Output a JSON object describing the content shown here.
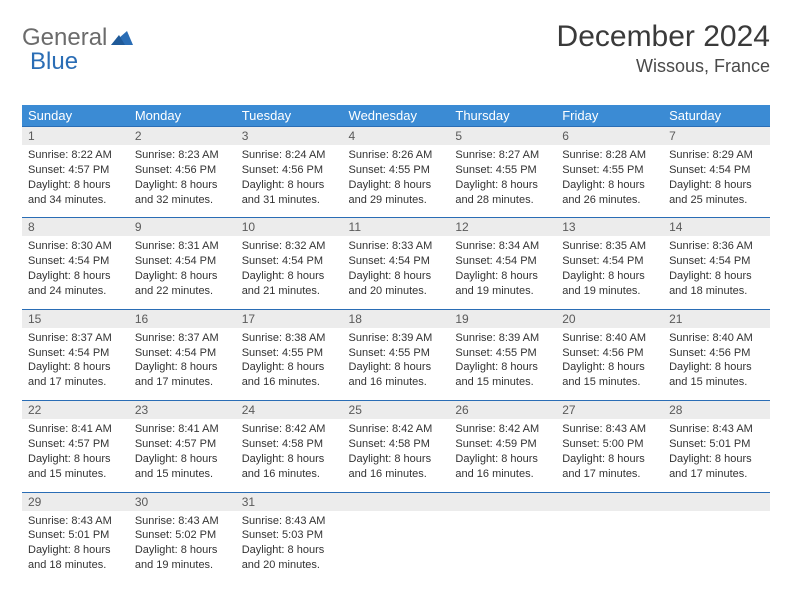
{
  "brand": {
    "part1": "General",
    "part2": "Blue",
    "iconColor": "#2a6db5"
  },
  "title": "December 2024",
  "location": "Wissous, France",
  "colors": {
    "headerBg": "#3b8bd4",
    "headerText": "#ffffff",
    "cellBorder": "#2a6db5",
    "daynumBg": "#ececec",
    "daynumText": "#5a5a5a",
    "bodyText": "#333333",
    "background": "#ffffff"
  },
  "typography": {
    "titleSize": 30,
    "locationSize": 18,
    "dayheadSize": 13,
    "daynumSize": 12,
    "bodySize": 11
  },
  "weekdays": [
    "Sunday",
    "Monday",
    "Tuesday",
    "Wednesday",
    "Thursday",
    "Friday",
    "Saturday"
  ],
  "days": [
    {
      "n": "1",
      "sunrise": "Sunrise: 8:22 AM",
      "sunset": "Sunset: 4:57 PM",
      "day1": "Daylight: 8 hours",
      "day2": "and 34 minutes."
    },
    {
      "n": "2",
      "sunrise": "Sunrise: 8:23 AM",
      "sunset": "Sunset: 4:56 PM",
      "day1": "Daylight: 8 hours",
      "day2": "and 32 minutes."
    },
    {
      "n": "3",
      "sunrise": "Sunrise: 8:24 AM",
      "sunset": "Sunset: 4:56 PM",
      "day1": "Daylight: 8 hours",
      "day2": "and 31 minutes."
    },
    {
      "n": "4",
      "sunrise": "Sunrise: 8:26 AM",
      "sunset": "Sunset: 4:55 PM",
      "day1": "Daylight: 8 hours",
      "day2": "and 29 minutes."
    },
    {
      "n": "5",
      "sunrise": "Sunrise: 8:27 AM",
      "sunset": "Sunset: 4:55 PM",
      "day1": "Daylight: 8 hours",
      "day2": "and 28 minutes."
    },
    {
      "n": "6",
      "sunrise": "Sunrise: 8:28 AM",
      "sunset": "Sunset: 4:55 PM",
      "day1": "Daylight: 8 hours",
      "day2": "and 26 minutes."
    },
    {
      "n": "7",
      "sunrise": "Sunrise: 8:29 AM",
      "sunset": "Sunset: 4:54 PM",
      "day1": "Daylight: 8 hours",
      "day2": "and 25 minutes."
    },
    {
      "n": "8",
      "sunrise": "Sunrise: 8:30 AM",
      "sunset": "Sunset: 4:54 PM",
      "day1": "Daylight: 8 hours",
      "day2": "and 24 minutes."
    },
    {
      "n": "9",
      "sunrise": "Sunrise: 8:31 AM",
      "sunset": "Sunset: 4:54 PM",
      "day1": "Daylight: 8 hours",
      "day2": "and 22 minutes."
    },
    {
      "n": "10",
      "sunrise": "Sunrise: 8:32 AM",
      "sunset": "Sunset: 4:54 PM",
      "day1": "Daylight: 8 hours",
      "day2": "and 21 minutes."
    },
    {
      "n": "11",
      "sunrise": "Sunrise: 8:33 AM",
      "sunset": "Sunset: 4:54 PM",
      "day1": "Daylight: 8 hours",
      "day2": "and 20 minutes."
    },
    {
      "n": "12",
      "sunrise": "Sunrise: 8:34 AM",
      "sunset": "Sunset: 4:54 PM",
      "day1": "Daylight: 8 hours",
      "day2": "and 19 minutes."
    },
    {
      "n": "13",
      "sunrise": "Sunrise: 8:35 AM",
      "sunset": "Sunset: 4:54 PM",
      "day1": "Daylight: 8 hours",
      "day2": "and 19 minutes."
    },
    {
      "n": "14",
      "sunrise": "Sunrise: 8:36 AM",
      "sunset": "Sunset: 4:54 PM",
      "day1": "Daylight: 8 hours",
      "day2": "and 18 minutes."
    },
    {
      "n": "15",
      "sunrise": "Sunrise: 8:37 AM",
      "sunset": "Sunset: 4:54 PM",
      "day1": "Daylight: 8 hours",
      "day2": "and 17 minutes."
    },
    {
      "n": "16",
      "sunrise": "Sunrise: 8:37 AM",
      "sunset": "Sunset: 4:54 PM",
      "day1": "Daylight: 8 hours",
      "day2": "and 17 minutes."
    },
    {
      "n": "17",
      "sunrise": "Sunrise: 8:38 AM",
      "sunset": "Sunset: 4:55 PM",
      "day1": "Daylight: 8 hours",
      "day2": "and 16 minutes."
    },
    {
      "n": "18",
      "sunrise": "Sunrise: 8:39 AM",
      "sunset": "Sunset: 4:55 PM",
      "day1": "Daylight: 8 hours",
      "day2": "and 16 minutes."
    },
    {
      "n": "19",
      "sunrise": "Sunrise: 8:39 AM",
      "sunset": "Sunset: 4:55 PM",
      "day1": "Daylight: 8 hours",
      "day2": "and 15 minutes."
    },
    {
      "n": "20",
      "sunrise": "Sunrise: 8:40 AM",
      "sunset": "Sunset: 4:56 PM",
      "day1": "Daylight: 8 hours",
      "day2": "and 15 minutes."
    },
    {
      "n": "21",
      "sunrise": "Sunrise: 8:40 AM",
      "sunset": "Sunset: 4:56 PM",
      "day1": "Daylight: 8 hours",
      "day2": "and 15 minutes."
    },
    {
      "n": "22",
      "sunrise": "Sunrise: 8:41 AM",
      "sunset": "Sunset: 4:57 PM",
      "day1": "Daylight: 8 hours",
      "day2": "and 15 minutes."
    },
    {
      "n": "23",
      "sunrise": "Sunrise: 8:41 AM",
      "sunset": "Sunset: 4:57 PM",
      "day1": "Daylight: 8 hours",
      "day2": "and 15 minutes."
    },
    {
      "n": "24",
      "sunrise": "Sunrise: 8:42 AM",
      "sunset": "Sunset: 4:58 PM",
      "day1": "Daylight: 8 hours",
      "day2": "and 16 minutes."
    },
    {
      "n": "25",
      "sunrise": "Sunrise: 8:42 AM",
      "sunset": "Sunset: 4:58 PM",
      "day1": "Daylight: 8 hours",
      "day2": "and 16 minutes."
    },
    {
      "n": "26",
      "sunrise": "Sunrise: 8:42 AM",
      "sunset": "Sunset: 4:59 PM",
      "day1": "Daylight: 8 hours",
      "day2": "and 16 minutes."
    },
    {
      "n": "27",
      "sunrise": "Sunrise: 8:43 AM",
      "sunset": "Sunset: 5:00 PM",
      "day1": "Daylight: 8 hours",
      "day2": "and 17 minutes."
    },
    {
      "n": "28",
      "sunrise": "Sunrise: 8:43 AM",
      "sunset": "Sunset: 5:01 PM",
      "day1": "Daylight: 8 hours",
      "day2": "and 17 minutes."
    },
    {
      "n": "29",
      "sunrise": "Sunrise: 8:43 AM",
      "sunset": "Sunset: 5:01 PM",
      "day1": "Daylight: 8 hours",
      "day2": "and 18 minutes."
    },
    {
      "n": "30",
      "sunrise": "Sunrise: 8:43 AM",
      "sunset": "Sunset: 5:02 PM",
      "day1": "Daylight: 8 hours",
      "day2": "and 19 minutes."
    },
    {
      "n": "31",
      "sunrise": "Sunrise: 8:43 AM",
      "sunset": "Sunset: 5:03 PM",
      "day1": "Daylight: 8 hours",
      "day2": "and 20 minutes."
    }
  ]
}
